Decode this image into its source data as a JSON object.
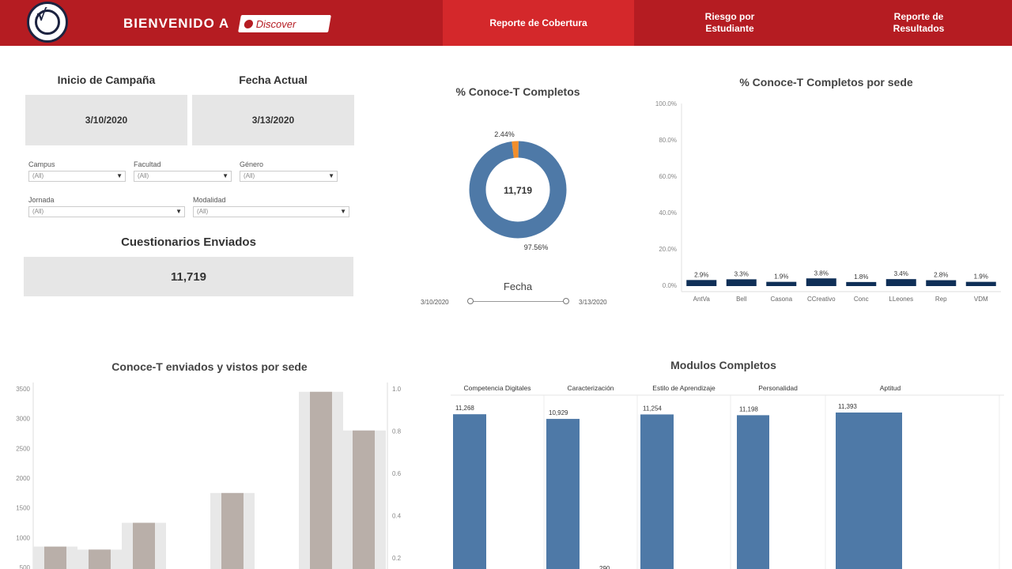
{
  "header": {
    "welcome": "BIENVENIDO A",
    "brand": "Discover",
    "nav": [
      {
        "line1": "Reporte de Cobertura",
        "line2": ""
      },
      {
        "line1": "Riesgo por",
        "line2": "Estudiante"
      },
      {
        "line1": "Reporte de",
        "line2": "Resultados"
      }
    ],
    "colors": {
      "bar": "#b51c22",
      "active": "#d4282b"
    }
  },
  "summary": {
    "start_label": "Inicio de Campaña",
    "start_value": "3/10/2020",
    "current_label": "Fecha Actual",
    "current_value": "3/13/2020",
    "sent_label": "Cuestionarios Enviados",
    "sent_value": "11,719"
  },
  "filters": [
    {
      "label": "Campus",
      "value": "(All)"
    },
    {
      "label": "Facultad",
      "value": "(All)"
    },
    {
      "label": "Género",
      "value": "(All)"
    },
    {
      "label": "Jornada",
      "value": "(All)"
    },
    {
      "label": "Modalidad",
      "value": "(All)"
    }
  ],
  "date_filter": {
    "label": "Fecha",
    "start": "3/10/2020",
    "end": "3/13/2020"
  },
  "chart_data": [
    {
      "type": "pie",
      "title": "% Conoce-T Completos",
      "center_label": "11,719",
      "slices": [
        {
          "label": "97.56%",
          "value": 97.56,
          "color": "#4e79a7"
        },
        {
          "label": "2.44%",
          "value": 2.44,
          "color": "#f28e2b"
        }
      ]
    },
    {
      "type": "bar",
      "title": "% Conoce-T Completos por sede",
      "categories": [
        "AntVa",
        "Bell",
        "Casona",
        "CCreativo",
        "Conc",
        "LLeones",
        "Rep",
        "VDM"
      ],
      "values": [
        2.9,
        3.3,
        1.9,
        3.8,
        1.8,
        3.4,
        2.8,
        1.9
      ],
      "value_labels": [
        "2.9%",
        "3.3%",
        "1.9%",
        "3.8%",
        "1.8%",
        "3.4%",
        "2.8%",
        "1.9%"
      ],
      "yticks": [
        "0.0%",
        "20.0%",
        "40.0%",
        "60.0%",
        "80.0%",
        "100.0%"
      ],
      "ylim": [
        0,
        100
      ],
      "color": "#0f2f57"
    },
    {
      "type": "bar",
      "title": "Conoce-T enviados y vistos por sede",
      "yticks_left": [
        "500",
        "1000",
        "1500",
        "2000",
        "2500",
        "3000",
        "3500"
      ],
      "yticks_right": [
        "0.2",
        "0.4",
        "0.6",
        "0.8",
        "1.0"
      ],
      "ylim": [
        500,
        3500
      ],
      "series": [
        {
          "values": [
            850,
            800,
            1250,
            1750,
            3450,
            2800
          ],
          "color": "#b9afa9"
        }
      ],
      "background_values": [
        850,
        800,
        1250,
        1750,
        3450,
        2800
      ],
      "background_color": "#e8e8e8"
    },
    {
      "type": "bar",
      "title": "Modulos Completos",
      "categories": [
        "Competencia Digitales",
        "Caracterización",
        "Estilo de Aprendizaje",
        "Personalidad",
        "Aptitud"
      ],
      "values": [
        11268,
        10929,
        11254,
        11198,
        11393
      ],
      "value_labels": [
        "11,268",
        "10,929",
        "11,254",
        "11,198",
        "11,393"
      ],
      "extra_label": "290",
      "color": "#4e79a7"
    }
  ]
}
